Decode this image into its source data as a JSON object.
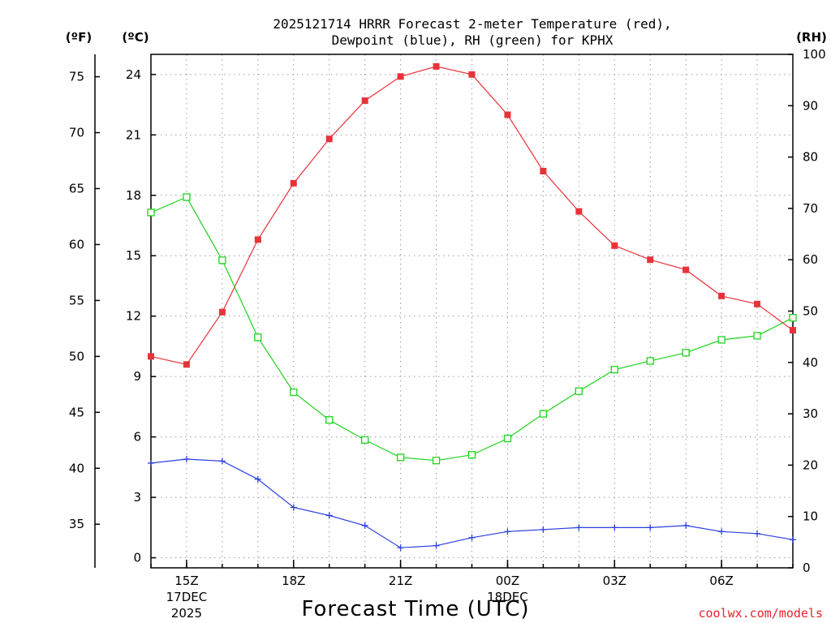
{
  "chart_data": {
    "type": "line",
    "title_line1": "2025121714 HRRR Forecast 2-meter Temperature (red),",
    "title_line2": "Dewpoint (blue), RH (green) for KPHX",
    "units": {
      "f": "(ºF)",
      "c": "(ºC)",
      "rh": "(RH)"
    },
    "xlabel": "Forecast Time (UTC)",
    "credit": "coolwx.com/models",
    "x_ticks": [
      {
        "i": 1,
        "label": "15Z",
        "sub1": "17DEC",
        "sub2": "2025"
      },
      {
        "i": 4,
        "label": "18Z"
      },
      {
        "i": 7,
        "label": "21Z"
      },
      {
        "i": 10,
        "label": "00Z",
        "sub1": "18DEC"
      },
      {
        "i": 13,
        "label": "03Z"
      },
      {
        "i": 16,
        "label": "06Z"
      }
    ],
    "times": [
      "14Z",
      "15Z",
      "16Z",
      "17Z",
      "18Z",
      "19Z",
      "20Z",
      "21Z",
      "22Z",
      "23Z",
      "00Z",
      "01Z",
      "02Z",
      "03Z",
      "04Z",
      "05Z",
      "06Z",
      "07Z",
      "08Z"
    ],
    "ylim_c": [
      -0.5,
      25.0
    ],
    "ylim_rh": [
      0,
      100
    ],
    "c_ticks": [
      0,
      3,
      6,
      9,
      12,
      15,
      18,
      21,
      24
    ],
    "f_ticks": [
      35,
      40,
      45,
      50,
      55,
      60,
      65,
      70,
      75
    ],
    "rh_ticks": [
      0,
      10,
      20,
      30,
      40,
      50,
      60,
      70,
      80,
      90,
      100
    ],
    "series": [
      {
        "name": "2-meter Temperature",
        "color": "#e8323a",
        "marker": "filled-square",
        "axis": "c",
        "values": [
          10.0,
          9.6,
          12.2,
          15.8,
          18.6,
          20.8,
          22.7,
          23.9,
          24.4,
          24.0,
          22.0,
          19.2,
          17.2,
          15.5,
          14.8,
          14.3,
          13.0,
          12.6,
          11.3
        ]
      },
      {
        "name": "Dewpoint",
        "color": "#2b3fe0",
        "marker": "plus",
        "axis": "c",
        "values": [
          4.7,
          4.9,
          4.8,
          3.9,
          2.5,
          2.1,
          1.6,
          0.5,
          0.6,
          1.0,
          1.3,
          1.4,
          1.5,
          1.5,
          1.5,
          1.6,
          1.3,
          1.2,
          0.9
        ]
      },
      {
        "name": "RH",
        "color": "#1ed41e",
        "marker": "open-square",
        "axis": "rh",
        "values": [
          69.2,
          72.2,
          59.9,
          44.9,
          34.2,
          28.8,
          24.9,
          21.5,
          20.9,
          22.0,
          25.2,
          30.0,
          34.4,
          38.6,
          40.3,
          41.9,
          44.4,
          45.2,
          48.7
        ]
      }
    ]
  }
}
